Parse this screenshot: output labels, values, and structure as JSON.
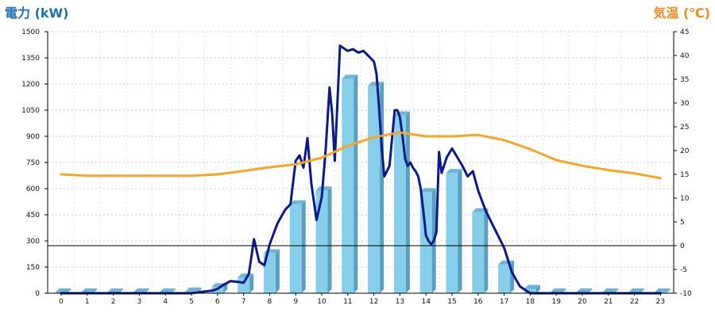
{
  "chart_data": {
    "type": "bar-line-combo",
    "x": [
      0,
      1,
      2,
      3,
      4,
      5,
      6,
      7,
      8,
      9,
      10,
      11,
      12,
      13,
      14,
      15,
      16,
      17,
      18,
      19,
      20,
      21,
      22,
      23
    ],
    "left_axis": {
      "title": "電力 (kW)",
      "color": "#1f6fb3",
      "ylim": [
        0,
        1500
      ],
      "ticks": [
        0,
        150,
        300,
        450,
        600,
        750,
        900,
        1050,
        1200,
        1350,
        1500
      ]
    },
    "right_axis": {
      "title": "気温 (℃)",
      "color": "#f08a1a",
      "ylim": [
        -10,
        45
      ],
      "ticks": [
        -10,
        -5,
        0,
        5,
        10,
        15,
        20,
        25,
        30,
        35,
        40,
        45
      ]
    },
    "grid": true,
    "series": [
      {
        "kind": "bar",
        "axis": "left",
        "color": "#87ceeb",
        "values": [
          5,
          5,
          5,
          5,
          5,
          10,
          35,
          90,
          230,
          510,
          590,
          1230,
          1190,
          1020,
          580,
          690,
          465,
          165,
          25,
          5,
          5,
          5,
          5,
          5
        ]
      },
      {
        "kind": "line",
        "axis": "left",
        "color": "#0a1a8a",
        "x": [
          0,
          1,
          2,
          3,
          4,
          5,
          5.5,
          5.8,
          6,
          6.2,
          6.5,
          6.8,
          7,
          7.2,
          7.4,
          7.6,
          7.8,
          8,
          8.3,
          8.6,
          8.8,
          9,
          9.15,
          9.3,
          9.45,
          9.6,
          9.8,
          10,
          10.15,
          10.3,
          10.4,
          10.5,
          10.7,
          10.8,
          11,
          11.2,
          11.4,
          11.6,
          11.8,
          12,
          12.1,
          12.2,
          12.3,
          12.4,
          12.6,
          12.8,
          12.9,
          13,
          13.1,
          13.2,
          13.3,
          13.4,
          13.5,
          13.6,
          13.7,
          13.8,
          13.9,
          14,
          14.1,
          14.2,
          14.3,
          14.4,
          14.5,
          14.6,
          14.8,
          15,
          15.2,
          15.4,
          15.6,
          15.8,
          16,
          16.3,
          16.6,
          17,
          17.3,
          17.6,
          18,
          19,
          20,
          21,
          22,
          23
        ],
        "values": [
          0,
          0,
          0,
          0,
          0,
          0,
          10,
          15,
          25,
          45,
          70,
          65,
          60,
          110,
          310,
          180,
          160,
          280,
          400,
          480,
          510,
          760,
          790,
          720,
          890,
          630,
          420,
          550,
          820,
          1180,
          1030,
          760,
          1420,
          1410,
          1390,
          1400,
          1380,
          1390,
          1360,
          1330,
          1260,
          1060,
          840,
          670,
          730,
          1050,
          1050,
          1010,
          900,
          770,
          730,
          750,
          720,
          700,
          670,
          600,
          470,
          330,
          300,
          280,
          300,
          350,
          810,
          690,
          780,
          830,
          780,
          730,
          670,
          700,
          590,
          470,
          380,
          260,
          120,
          40,
          0,
          0,
          0,
          0,
          0,
          0
        ]
      },
      {
        "kind": "line",
        "axis": "right",
        "color": "#f5a623",
        "x": [
          0,
          1,
          2,
          3,
          4,
          5,
          6,
          7,
          8,
          9,
          10,
          11,
          12,
          13,
          14,
          15,
          16,
          17,
          18,
          19,
          20,
          21,
          22,
          23
        ],
        "values": [
          15,
          14.7,
          14.7,
          14.7,
          14.7,
          14.7,
          15,
          15.7,
          16.5,
          17.1,
          18.5,
          21,
          22.8,
          23.8,
          23,
          23,
          23.3,
          22.2,
          20.3,
          18,
          16.8,
          15.9,
          15.2,
          14.2
        ]
      }
    ]
  }
}
